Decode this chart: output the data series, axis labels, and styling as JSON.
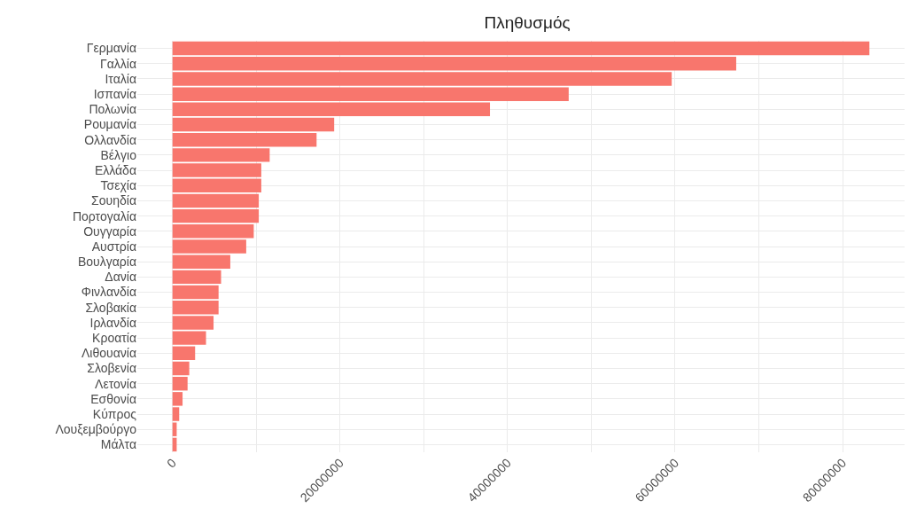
{
  "chart_data": {
    "type": "bar",
    "title": "Πληθυσμός",
    "orientation": "horizontal",
    "categories": [
      "Γερμανία",
      "Γαλλία",
      "Ιταλία",
      "Ισπανία",
      "Πολωνία",
      "Ρουμανία",
      "Ολλανδία",
      "Βέλγιο",
      "Ελλάδα",
      "Τσεχία",
      "Σουηδία",
      "Πορτογαλία",
      "Ουγγαρία",
      "Αυστρία",
      "Βουλγαρία",
      "Δανία",
      "Φινλανδία",
      "Σλοβακία",
      "Ιρλανδία",
      "Κροατία",
      "Λιθουανία",
      "Σλοβενία",
      "Λετονία",
      "Εσθονία",
      "Κύπρος",
      "Λουξεμβούργο",
      "Μάλτα"
    ],
    "values": [
      83200000,
      67300000,
      59600000,
      47300000,
      37900000,
      19300000,
      17200000,
      11600000,
      10600000,
      10600000,
      10300000,
      10300000,
      9700000,
      8800000,
      6900000,
      5800000,
      5500000,
      5500000,
      4900000,
      4000000,
      2700000,
      2000000,
      1800000,
      1200000,
      800000,
      500000,
      500000
    ],
    "color": "#f8766d",
    "xlim": [
      -4200000,
      87400000
    ],
    "xticks": [
      0,
      {
        "value": 10000000,
        "label": null
      },
      20000000,
      {
        "value": 30000000,
        "label": null
      },
      40000000,
      {
        "value": 50000000,
        "label": null
      },
      60000000,
      {
        "value": 70000000,
        "label": null
      },
      80000000
    ],
    "grid": true
  }
}
